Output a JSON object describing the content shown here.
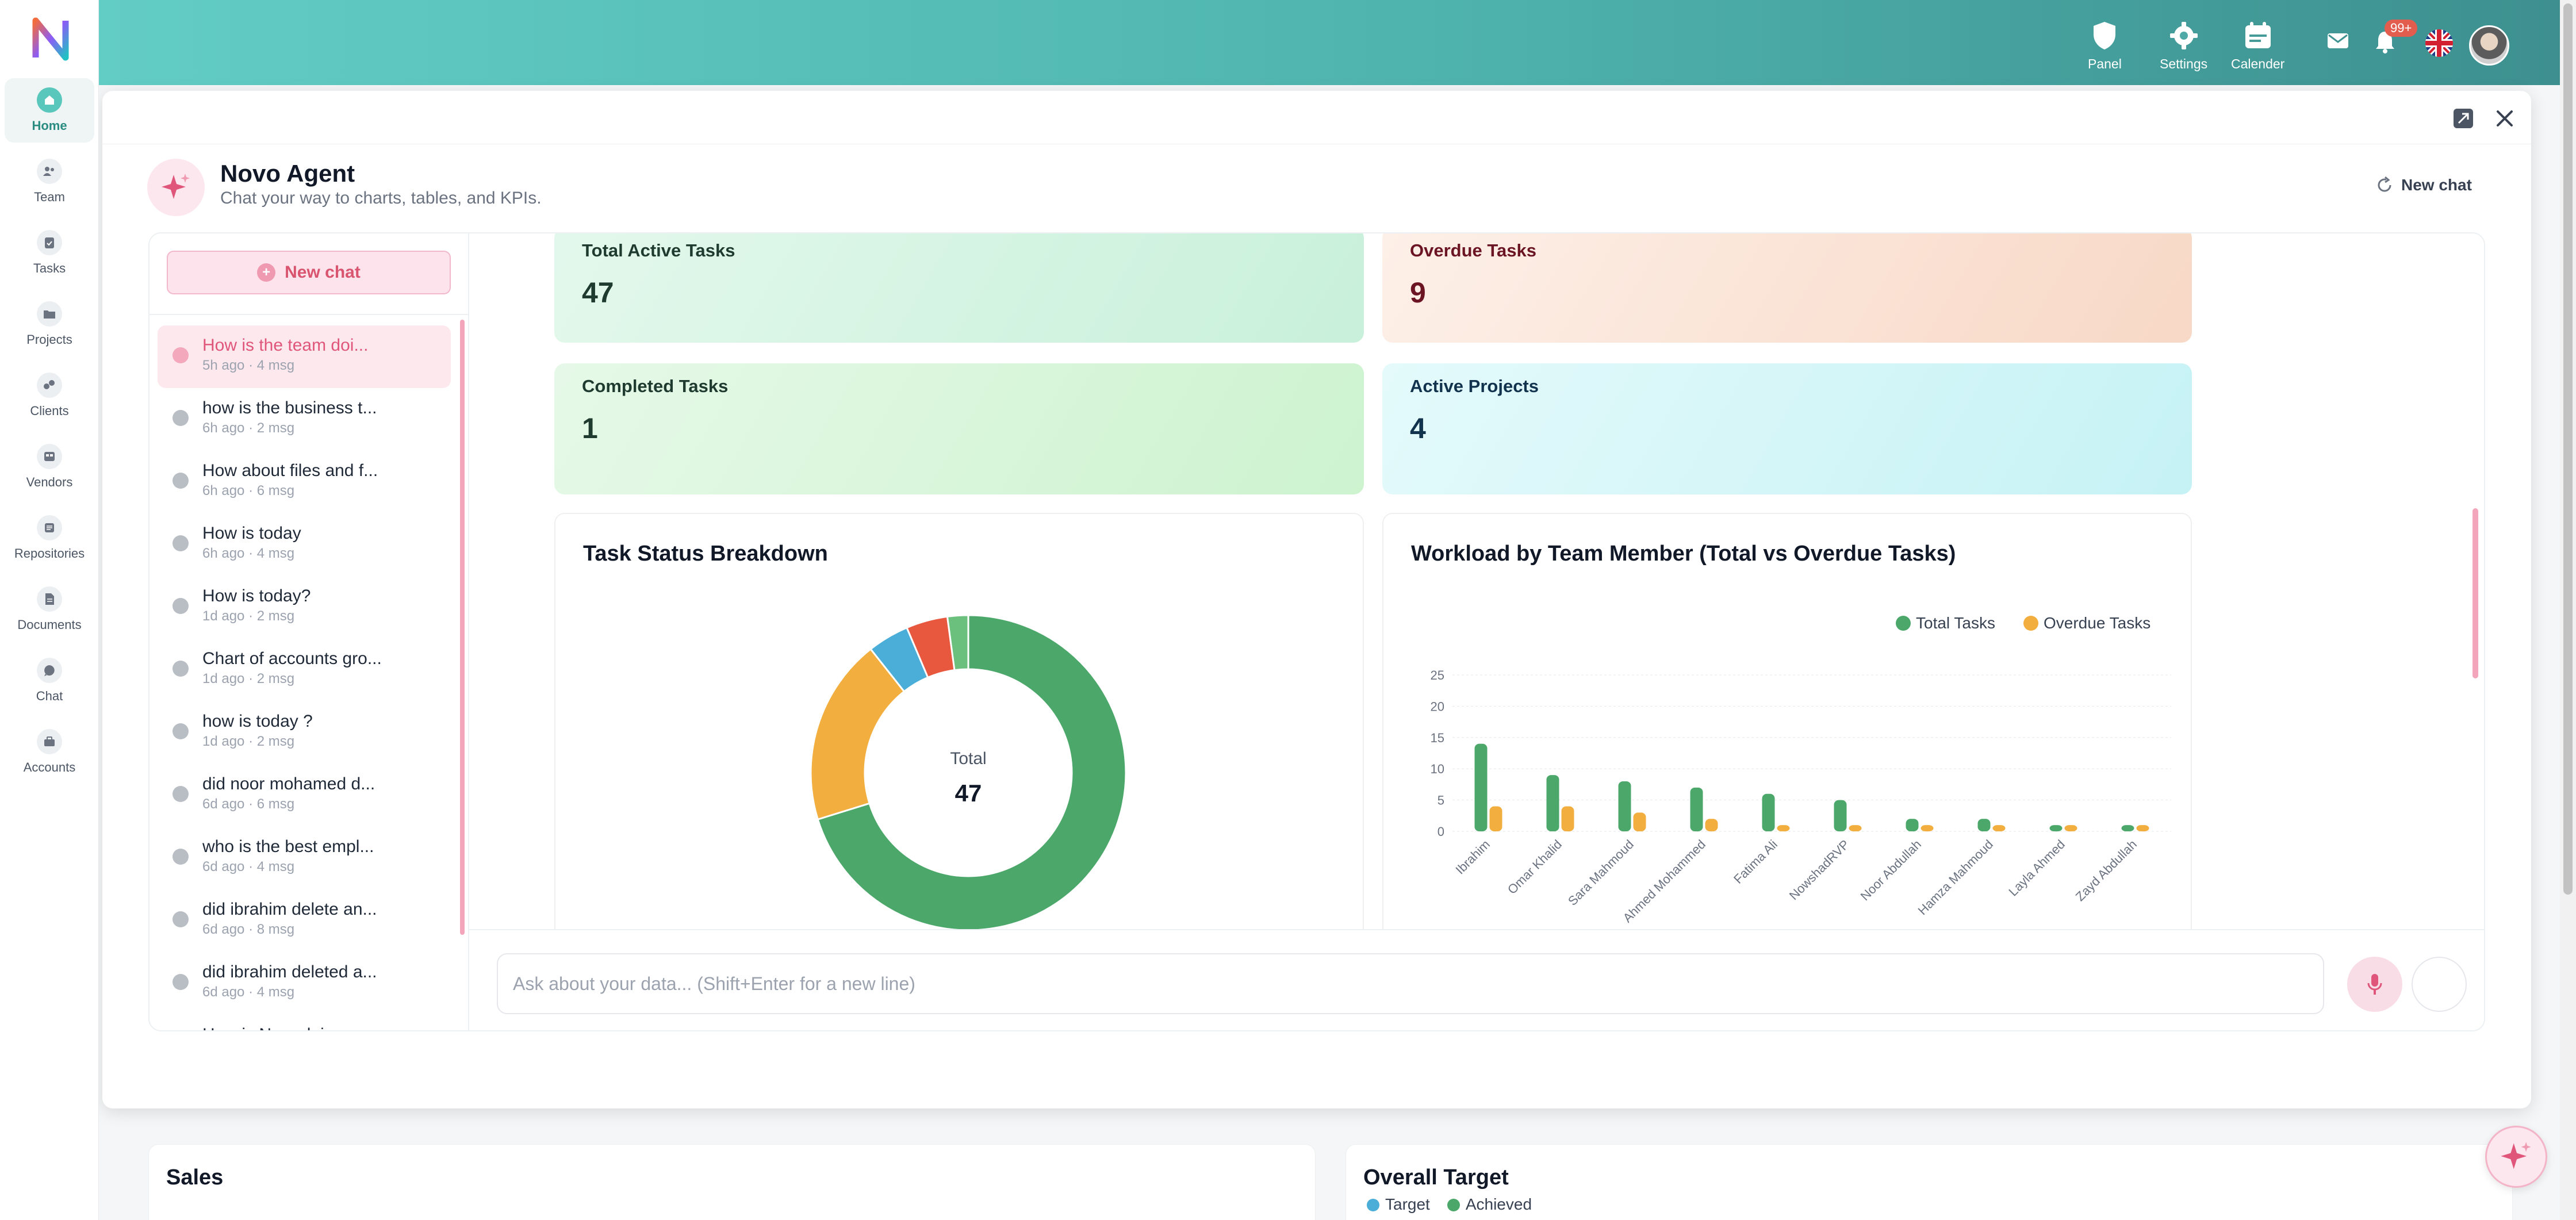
{
  "nav": {
    "items": [
      {
        "label": "Home",
        "icon": "home-icon",
        "active": true
      },
      {
        "label": "Team",
        "icon": "team-icon"
      },
      {
        "label": "Tasks",
        "icon": "tasks-icon"
      },
      {
        "label": "Projects",
        "icon": "folder-icon"
      },
      {
        "label": "Clients",
        "icon": "clients-icon"
      },
      {
        "label": "Vendors",
        "icon": "vendors-icon"
      },
      {
        "label": "Repositories",
        "icon": "repository-icon"
      },
      {
        "label": "Documents",
        "icon": "document-icon"
      },
      {
        "label": "Chat",
        "icon": "chat-icon"
      },
      {
        "label": "Accounts",
        "icon": "briefcase-icon"
      }
    ]
  },
  "topbar": {
    "panel_label": "Panel",
    "settings_label": "Settings",
    "calendar_label": "Calender",
    "notification_badge": "99+"
  },
  "agent": {
    "title": "Novo Agent",
    "subtitle": "Chat your way to charts, tables, and KPIs.",
    "new_chat_top": "New chat",
    "new_chat_sidebar": "New chat"
  },
  "conversations": [
    {
      "title": "How is the team doi...",
      "meta": "5h ago · 4 msg",
      "active": true
    },
    {
      "title": "how is the business t...",
      "meta": "6h ago · 2 msg"
    },
    {
      "title": "How about files and f...",
      "meta": "6h ago · 6 msg"
    },
    {
      "title": "How is today",
      "meta": "6h ago · 4 msg"
    },
    {
      "title": "How is today?",
      "meta": "1d ago · 2 msg"
    },
    {
      "title": "Chart of accounts gro...",
      "meta": "1d ago · 2 msg"
    },
    {
      "title": "how is today ?",
      "meta": "1d ago · 2 msg"
    },
    {
      "title": "did noor mohamed d...",
      "meta": "6d ago · 6 msg"
    },
    {
      "title": "who is the best empl...",
      "meta": "6d ago · 4 msg"
    },
    {
      "title": "did ibrahim delete an...",
      "meta": "6d ago · 8 msg"
    },
    {
      "title": "did ibrahim deleted a...",
      "meta": "6d ago · 4 msg"
    },
    {
      "title": "How is Noor doing o...",
      "meta": ""
    }
  ],
  "kpis": [
    {
      "label": "Total Active Tasks",
      "value": "47"
    },
    {
      "label": "Overdue Tasks",
      "value": "9"
    },
    {
      "label": "Completed Tasks",
      "value": "1"
    },
    {
      "label": "Active Projects",
      "value": "4"
    }
  ],
  "chart_data": [
    {
      "type": "pie",
      "title": "Task Status Breakdown",
      "center_label": "Total",
      "center_value": "47",
      "donut": true,
      "slices": [
        {
          "value": 33,
          "color": "#4ca86a"
        },
        {
          "value": 9,
          "color": "#f2ae3f"
        },
        {
          "value": 2,
          "color": "#4aaed8"
        },
        {
          "value": 2,
          "color": "#e8583f"
        },
        {
          "value": 1,
          "color": "#6cc07e"
        }
      ]
    },
    {
      "type": "bar",
      "title": "Workload by Team Member (Total vs Overdue Tasks)",
      "categories": [
        "Ibrahim",
        "Omar Khalid",
        "Sara Mahmoud",
        "Ahmed Mohammed",
        "Fatima Ali",
        "NowshadRVP",
        "Noor Abdullah",
        "Hamza Mahmoud",
        "Layla Ahmed",
        "Zayd Abdullah"
      ],
      "series": [
        {
          "name": "Total Tasks",
          "color": "#4ca86a",
          "values": [
            14,
            9,
            8,
            7,
            6,
            5,
            2,
            2,
            1,
            1
          ]
        },
        {
          "name": "Overdue Tasks",
          "color": "#f2ae3f",
          "values": [
            4,
            4,
            3,
            2,
            1,
            1,
            1,
            1,
            1,
            1
          ]
        }
      ],
      "yticks": [
        "0",
        "5",
        "10",
        "15",
        "20",
        "25"
      ],
      "ylim": [
        0,
        25
      ],
      "legend": "top-right",
      "grid": true
    }
  ],
  "input": {
    "placeholder": "Ask about your data... (Shift+Enter for a new line)"
  },
  "background": {
    "sales_title": "Sales",
    "target_title": "Overall Target",
    "legend_target": "Target",
    "legend_achieved": "Achieved"
  },
  "colors": {
    "accent": "#4fb3ad",
    "pink": "#e0567a"
  }
}
